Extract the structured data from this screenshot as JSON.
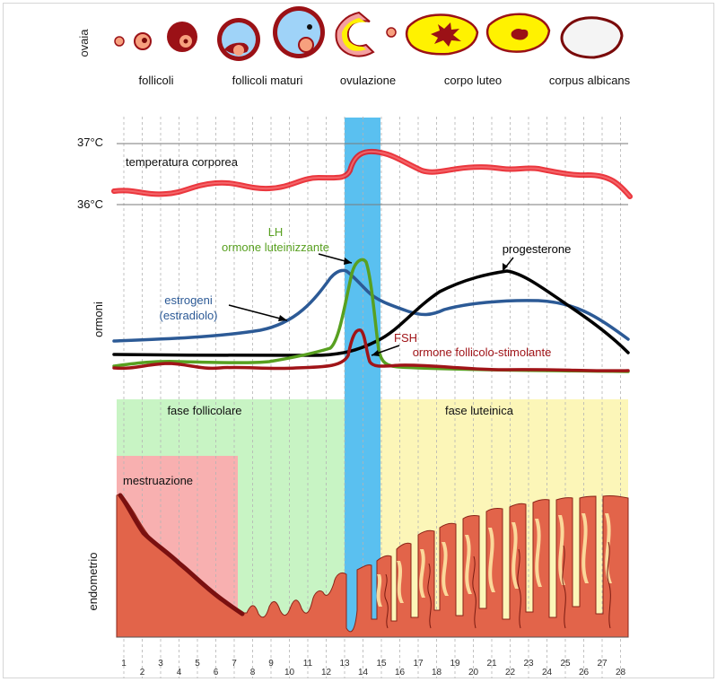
{
  "ovary_row": {
    "side_label": "ovaia",
    "stages": [
      "follicoli",
      "follicoli maturi",
      "ovulazione",
      "corpo luteo",
      "corpus albicans"
    ]
  },
  "temperature": {
    "label": "temperatura corporea",
    "high_label": "37°C",
    "low_label": "36°C",
    "color": "#e8141c"
  },
  "hormones": {
    "side_label": "ormoni",
    "lh_short": "LH",
    "lh_long": "ormone luteinizzante",
    "progesterone": "progesterone",
    "estrogen_1": "estrogeni",
    "estrogen_2": "(estradiolo)",
    "fsh_short": "FSH",
    "fsh_long": "ormone follicolo-stimolante",
    "colors": {
      "lh": "#58a020",
      "estrogen": "#2c5a96",
      "progesterone": "#000000",
      "fsh": "#a01418"
    }
  },
  "phases": {
    "follicular": "fase follicolare",
    "luteal": "fase luteinica",
    "menstruation": "mestruazione",
    "colors": {
      "follicular": "#c8f4c4",
      "luteal": "#fcf6b8",
      "menstruation": "#f8b0b0",
      "ovulation": "#5ac0f0"
    }
  },
  "endometrium": {
    "side_label": "endometrio",
    "color": "#e2644a"
  },
  "days": [
    "1",
    "2",
    "3",
    "4",
    "5",
    "6",
    "7",
    "8",
    "9",
    "10",
    "11",
    "12",
    "13",
    "14",
    "15",
    "16",
    "17",
    "18",
    "19",
    "20",
    "21",
    "22",
    "23",
    "24",
    "25",
    "26",
    "27",
    "28"
  ]
}
